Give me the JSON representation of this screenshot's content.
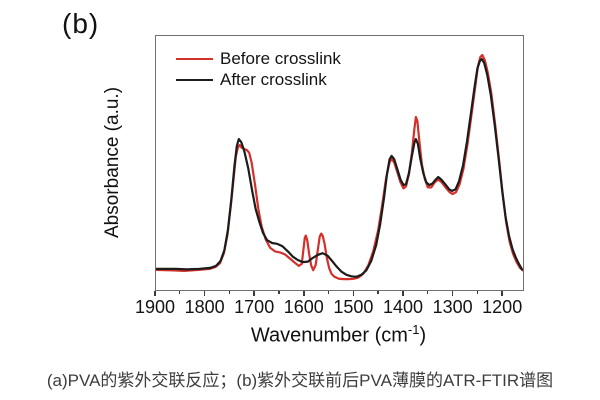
{
  "figure": {
    "panel_label": "(b)",
    "caption": "(a)PVA的紫外交联反应；(b)紫外交联前后PVA薄膜的ATR-FTIR谱图"
  },
  "chart_data": {
    "type": "line",
    "title": "",
    "ylabel": "Absorbance (a.u.)",
    "xlabel": {
      "prefix": "Wavenumber (cm",
      "sup": "-1",
      "suffix": ")"
    },
    "x_axis": {
      "max": 1900,
      "min": 1160,
      "reversed": true,
      "major_ticks": [
        1900,
        1800,
        1700,
        1600,
        1500,
        1400,
        1300,
        1200
      ],
      "minor_ticks": [
        1850,
        1750,
        1650,
        1550,
        1450,
        1350,
        1250
      ]
    },
    "y_axis": {
      "min": 0,
      "max": 1,
      "unit": "a.u.",
      "tick_labels_shown": false
    },
    "legend": {
      "position": "inside-top-left",
      "entries": [
        {
          "label": "Before crosslink",
          "color": "#d42f28"
        },
        {
          "label": "After crosslink",
          "color": "#1c1c1c"
        }
      ]
    },
    "series": [
      {
        "name": "Before crosslink",
        "color": "#d42f28",
        "points": [
          [
            1900,
            0.079
          ],
          [
            1865,
            0.077
          ],
          [
            1843,
            0.075
          ],
          [
            1815,
            0.079
          ],
          [
            1792,
            0.083
          ],
          [
            1780,
            0.091
          ],
          [
            1771,
            0.106
          ],
          [
            1763,
            0.145
          ],
          [
            1756,
            0.216
          ],
          [
            1749,
            0.335
          ],
          [
            1744,
            0.43
          ],
          [
            1739,
            0.525
          ],
          [
            1735,
            0.56
          ],
          [
            1731,
            0.571
          ],
          [
            1727,
            0.56
          ],
          [
            1722,
            0.555
          ],
          [
            1717,
            0.551
          ],
          [
            1712,
            0.54
          ],
          [
            1707,
            0.5
          ],
          [
            1700,
            0.41
          ],
          [
            1694,
            0.322
          ],
          [
            1687,
            0.25
          ],
          [
            1679,
            0.2
          ],
          [
            1670,
            0.166
          ],
          [
            1660,
            0.152
          ],
          [
            1650,
            0.148
          ],
          [
            1640,
            0.14
          ],
          [
            1630,
            0.124
          ],
          [
            1620,
            0.107
          ],
          [
            1612,
            0.095
          ],
          [
            1606,
            0.103
          ],
          [
            1603,
            0.155
          ],
          [
            1600,
            0.206
          ],
          [
            1598,
            0.214
          ],
          [
            1595,
            0.195
          ],
          [
            1591,
            0.14
          ],
          [
            1587,
            0.097
          ],
          [
            1583,
            0.078
          ],
          [
            1578,
            0.099
          ],
          [
            1574,
            0.155
          ],
          [
            1570,
            0.21
          ],
          [
            1567,
            0.222
          ],
          [
            1564,
            0.214
          ],
          [
            1560,
            0.182
          ],
          [
            1556,
            0.131
          ],
          [
            1551,
            0.087
          ],
          [
            1546,
            0.063
          ],
          [
            1540,
            0.052
          ],
          [
            1532,
            0.045
          ],
          [
            1522,
            0.043
          ],
          [
            1512,
            0.043
          ],
          [
            1502,
            0.044
          ],
          [
            1492,
            0.049
          ],
          [
            1482,
            0.064
          ],
          [
            1472,
            0.097
          ],
          [
            1462,
            0.152
          ],
          [
            1452,
            0.236
          ],
          [
            1444,
            0.335
          ],
          [
            1436,
            0.44
          ],
          [
            1429,
            0.503
          ],
          [
            1425,
            0.516
          ],
          [
            1420,
            0.503
          ],
          [
            1414,
            0.468
          ],
          [
            1407,
            0.424
          ],
          [
            1401,
            0.4
          ],
          [
            1396,
            0.408
          ],
          [
            1390,
            0.455
          ],
          [
            1384,
            0.54
          ],
          [
            1379,
            0.635
          ],
          [
            1376,
            0.681
          ],
          [
            1373,
            0.665
          ],
          [
            1369,
            0.587
          ],
          [
            1364,
            0.497
          ],
          [
            1358,
            0.437
          ],
          [
            1352,
            0.404
          ],
          [
            1345,
            0.404
          ],
          [
            1338,
            0.424
          ],
          [
            1331,
            0.435
          ],
          [
            1324,
            0.424
          ],
          [
            1316,
            0.404
          ],
          [
            1308,
            0.385
          ],
          [
            1302,
            0.378
          ],
          [
            1295,
            0.385
          ],
          [
            1288,
            0.415
          ],
          [
            1280,
            0.478
          ],
          [
            1272,
            0.575
          ],
          [
            1264,
            0.687
          ],
          [
            1257,
            0.79
          ],
          [
            1251,
            0.88
          ],
          [
            1246,
            0.917
          ],
          [
            1242,
            0.925
          ],
          [
            1237,
            0.905
          ],
          [
            1231,
            0.855
          ],
          [
            1224,
            0.775
          ],
          [
            1216,
            0.65
          ],
          [
            1208,
            0.508
          ],
          [
            1201,
            0.378
          ],
          [
            1194,
            0.268
          ],
          [
            1187,
            0.19
          ],
          [
            1180,
            0.142
          ],
          [
            1173,
            0.11
          ],
          [
            1166,
            0.087
          ],
          [
            1160,
            0.077
          ]
        ]
      },
      {
        "name": "After crosslink",
        "color": "#1c1c1c",
        "points": [
          [
            1900,
            0.083
          ],
          [
            1860,
            0.083
          ],
          [
            1838,
            0.081
          ],
          [
            1812,
            0.083
          ],
          [
            1791,
            0.087
          ],
          [
            1779,
            0.095
          ],
          [
            1770,
            0.114
          ],
          [
            1762,
            0.157
          ],
          [
            1755,
            0.236
          ],
          [
            1748,
            0.36
          ],
          [
            1742,
            0.487
          ],
          [
            1737,
            0.566
          ],
          [
            1733,
            0.594
          ],
          [
            1728,
            0.582
          ],
          [
            1722,
            0.547
          ],
          [
            1714,
            0.48
          ],
          [
            1706,
            0.39
          ],
          [
            1699,
            0.318
          ],
          [
            1692,
            0.27
          ],
          [
            1684,
            0.224
          ],
          [
            1676,
            0.196
          ],
          [
            1666,
            0.185
          ],
          [
            1656,
            0.182
          ],
          [
            1645,
            0.172
          ],
          [
            1634,
            0.152
          ],
          [
            1624,
            0.131
          ],
          [
            1614,
            0.118
          ],
          [
            1604,
            0.11
          ],
          [
            1594,
            0.112
          ],
          [
            1584,
            0.126
          ],
          [
            1574,
            0.138
          ],
          [
            1564,
            0.145
          ],
          [
            1554,
            0.135
          ],
          [
            1545,
            0.114
          ],
          [
            1536,
            0.093
          ],
          [
            1526,
            0.072
          ],
          [
            1516,
            0.06
          ],
          [
            1506,
            0.054
          ],
          [
            1496,
            0.052
          ],
          [
            1486,
            0.06
          ],
          [
            1476,
            0.077
          ],
          [
            1466,
            0.114
          ],
          [
            1456,
            0.177
          ],
          [
            1448,
            0.26
          ],
          [
            1440,
            0.365
          ],
          [
            1434,
            0.46
          ],
          [
            1429,
            0.515
          ],
          [
            1425,
            0.528
          ],
          [
            1420,
            0.516
          ],
          [
            1414,
            0.48
          ],
          [
            1407,
            0.435
          ],
          [
            1401,
            0.413
          ],
          [
            1396,
            0.417
          ],
          [
            1390,
            0.46
          ],
          [
            1384,
            0.528
          ],
          [
            1379,
            0.58
          ],
          [
            1376,
            0.594
          ],
          [
            1372,
            0.575
          ],
          [
            1367,
            0.516
          ],
          [
            1361,
            0.46
          ],
          [
            1355,
            0.424
          ],
          [
            1349,
            0.413
          ],
          [
            1342,
            0.42
          ],
          [
            1336,
            0.435
          ],
          [
            1331,
            0.445
          ],
          [
            1325,
            0.435
          ],
          [
            1317,
            0.417
          ],
          [
            1309,
            0.397
          ],
          [
            1303,
            0.39
          ],
          [
            1296,
            0.397
          ],
          [
            1289,
            0.428
          ],
          [
            1281,
            0.49
          ],
          [
            1273,
            0.585
          ],
          [
            1265,
            0.695
          ],
          [
            1258,
            0.795
          ],
          [
            1252,
            0.872
          ],
          [
            1247,
            0.902
          ],
          [
            1243,
            0.909
          ],
          [
            1238,
            0.893
          ],
          [
            1232,
            0.846
          ],
          [
            1225,
            0.767
          ],
          [
            1217,
            0.65
          ],
          [
            1209,
            0.515
          ],
          [
            1202,
            0.39
          ],
          [
            1195,
            0.287
          ],
          [
            1188,
            0.212
          ],
          [
            1181,
            0.16
          ],
          [
            1174,
            0.125
          ],
          [
            1168,
            0.102
          ],
          [
            1162,
            0.081
          ]
        ]
      }
    ]
  },
  "style": {
    "accent_red": "#d42f28",
    "curve_black": "#1c1c1c",
    "frame_color": "#707070",
    "tick_color": "#3a3a3a",
    "text_color": "#141414",
    "caption_color": "#3d3d3d",
    "background": "#ffffff"
  }
}
